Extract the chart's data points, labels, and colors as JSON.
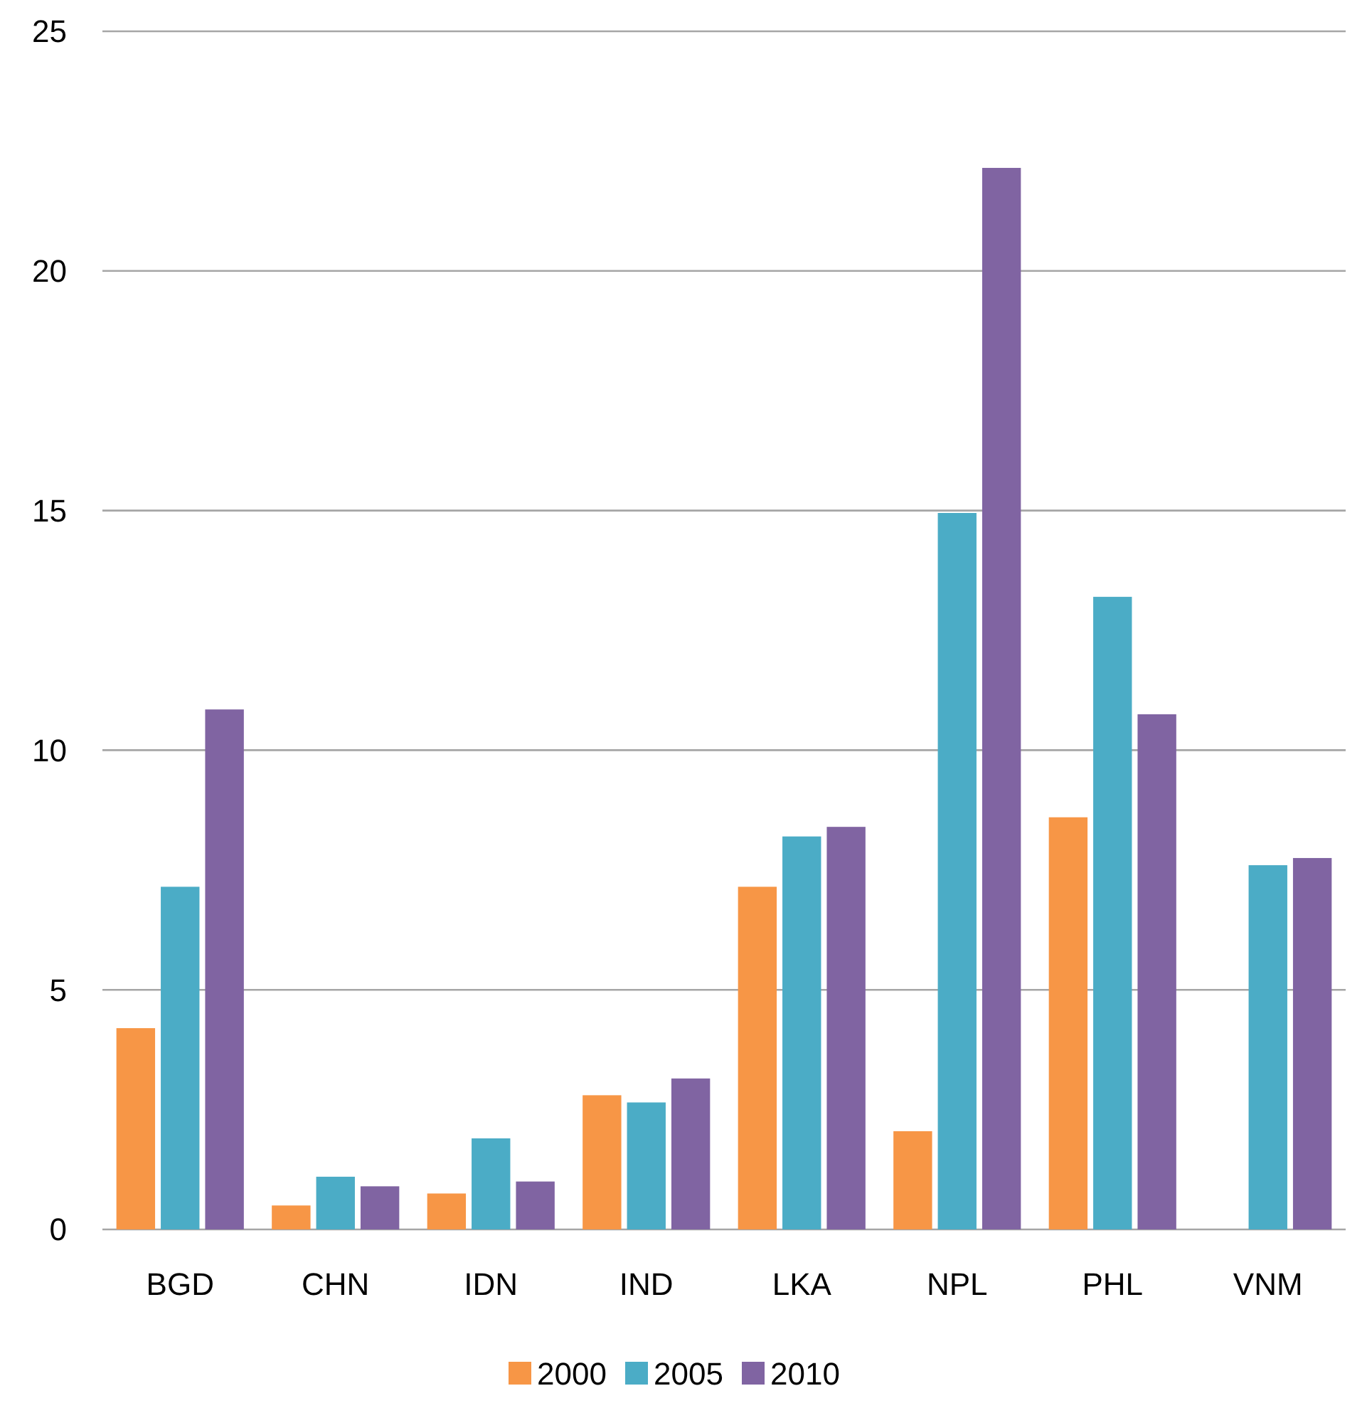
{
  "chart_data": {
    "type": "bar",
    "categories": [
      "BGD",
      "CHN",
      "IDN",
      "IND",
      "LKA",
      "NPL",
      "PHL",
      "VNM"
    ],
    "series": [
      {
        "name": "2000",
        "color": "#f79646",
        "values": [
          4.2,
          0.5,
          0.75,
          2.8,
          7.15,
          2.05,
          8.6,
          null
        ]
      },
      {
        "name": "2005",
        "color": "#4bacc6",
        "values": [
          7.15,
          1.1,
          1.9,
          2.65,
          8.2,
          14.95,
          13.2,
          7.6
        ]
      },
      {
        "name": "2010",
        "color": "#8064a2",
        "values": [
          10.85,
          0.9,
          1.0,
          3.15,
          8.4,
          22.15,
          10.75,
          7.75
        ]
      }
    ],
    "ylim": [
      0,
      25
    ],
    "yticks": [
      0,
      5,
      10,
      15,
      20,
      25
    ],
    "grid": "y",
    "legend": "bottom"
  }
}
